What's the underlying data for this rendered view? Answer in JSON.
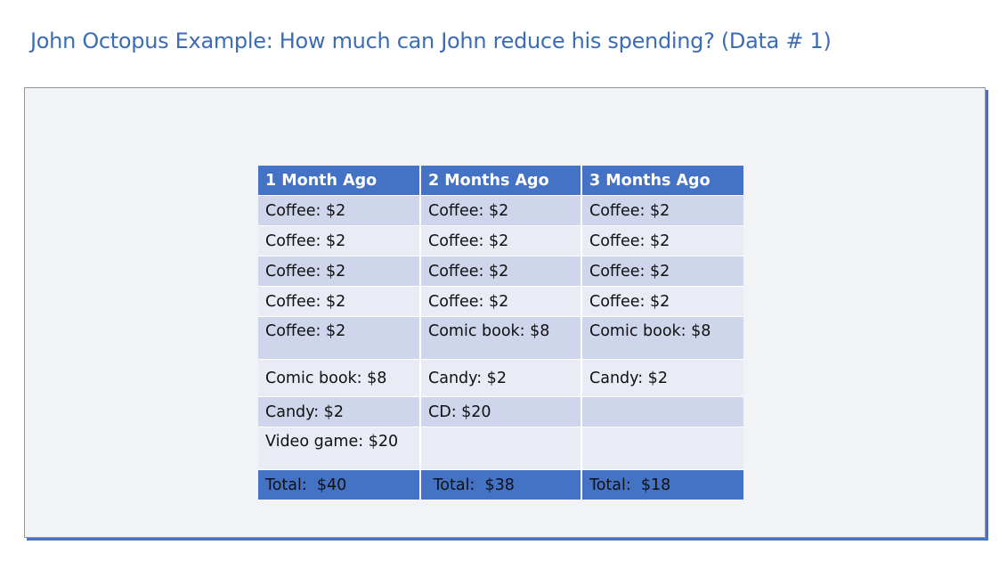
{
  "title": "John Octopus Example: How much can John reduce his spending? (Data # 1)",
  "table": {
    "headers": [
      "1 Month Ago",
      "2 Months Ago",
      "3 Months Ago"
    ],
    "rows": [
      [
        "Coffee: $2",
        "Coffee: $2",
        "Coffee: $2"
      ],
      [
        "Coffee: $2",
        "Coffee: $2",
        "Coffee: $2"
      ],
      [
        "Coffee: $2",
        "Coffee: $2",
        "Coffee: $2"
      ],
      [
        "Coffee: $2",
        "Coffee: $2",
        "Coffee: $2"
      ],
      [
        "Coffee: $2",
        "Comic book: $8",
        "Comic book: $8"
      ],
      [
        "Comic book: $8",
        "Candy: $2",
        "Candy: $2"
      ],
      [
        "Candy: $2",
        "CD: $20",
        ""
      ],
      [
        "Video game: $20",
        "",
        ""
      ]
    ],
    "totals": [
      "Total:  $40",
      " Total:  $38",
      "Total:  $18"
    ]
  }
}
